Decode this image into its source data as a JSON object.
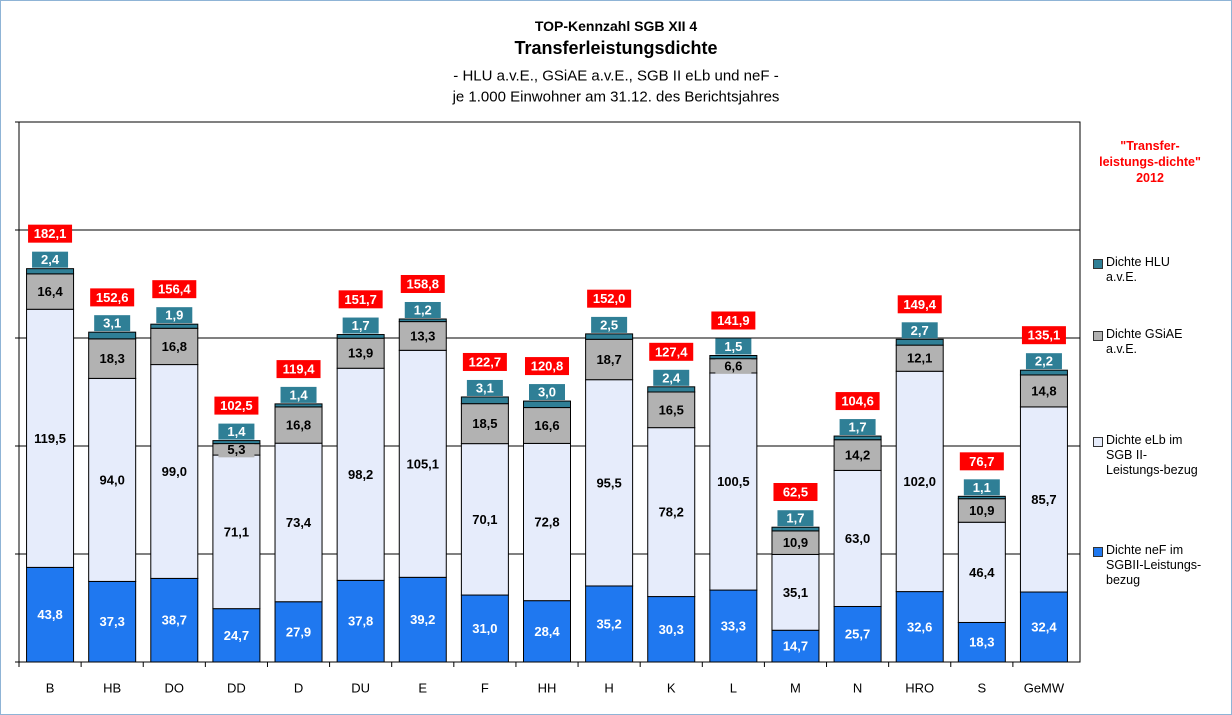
{
  "chart_data": {
    "type": "stacked_bar",
    "title": "TOP-Kennzahl SGB XII 4",
    "subtitle": "Transferleistungsdichte",
    "subtitle_lines": [
      "- HLU a.v.E., GSiAE a.v.E., SGB II eLb und neF -",
      "je 1.000 Einwohner am 31.12. des Berichtsjahres"
    ],
    "annotation": "\"Transfer-leistungs-dichte\" 2012",
    "categories": [
      "B",
      "HB",
      "DO",
      "DD",
      "D",
      "DU",
      "E",
      "F",
      "HH",
      "H",
      "K",
      "L",
      "M",
      "N",
      "HRO",
      "S",
      "GeMW"
    ],
    "ylim": [
      0,
      250
    ],
    "yticks": [
      0,
      50,
      100,
      150,
      200,
      250
    ],
    "grid": true,
    "tick_labels": false,
    "legend": "right",
    "series": [
      {
        "name": "Dichte neF im SGBII-Leistungs-bezug",
        "color": "#1f78f0",
        "label_color": "#ffffff",
        "values": [
          43.8,
          37.3,
          38.7,
          24.7,
          27.9,
          37.8,
          39.2,
          31.0,
          28.4,
          35.2,
          30.3,
          33.3,
          14.7,
          25.7,
          32.6,
          18.3,
          32.4
        ],
        "value_labels": [
          "43,8",
          "37,3",
          "38,7",
          "24,7",
          "27,9",
          "37,8",
          "39,2",
          "31,0",
          "28,4",
          "35,2",
          "30,3",
          "33,3",
          "14,7",
          "25,7",
          "32,6",
          "18,3",
          "32,4"
        ]
      },
      {
        "name": "Dichte eLb im SGB II-Leistungs-bezug",
        "color": "#e6ecfb",
        "label_color": "#000000",
        "values": [
          119.5,
          94.0,
          99.0,
          71.1,
          73.4,
          98.2,
          105.1,
          70.1,
          72.8,
          95.5,
          78.2,
          100.5,
          35.1,
          63.0,
          102.0,
          46.4,
          85.7
        ],
        "value_labels": [
          "119,5",
          "94,0",
          "99,0",
          "71,1",
          "73,4",
          "98,2",
          "105,1",
          "70,1",
          "72,8",
          "95,5",
          "78,2",
          "100,5",
          "35,1",
          "63,0",
          "102,0",
          "46,4",
          "85,7"
        ]
      },
      {
        "name": "Dichte GSiAE a.v.E.",
        "color": "#b2b2b2",
        "label_color": "#000000",
        "values": [
          16.4,
          18.3,
          16.8,
          5.3,
          16.8,
          13.9,
          13.3,
          18.5,
          16.6,
          18.7,
          16.5,
          6.6,
          10.9,
          14.2,
          12.1,
          10.9,
          14.8
        ],
        "value_labels": [
          "16,4",
          "18,3",
          "16,8",
          "5,3",
          "16,8",
          "13,9",
          "13,3",
          "18,5",
          "16,6",
          "18,7",
          "16,5",
          "6,6",
          "10,9",
          "14,2",
          "12,1",
          "10,9",
          "14,8"
        ]
      },
      {
        "name": "Dichte HLU a.v.E.",
        "color": "#2f7f96",
        "label_color": "#ffffff",
        "values": [
          2.4,
          3.1,
          1.9,
          1.4,
          1.4,
          1.7,
          1.2,
          3.1,
          3.0,
          2.5,
          2.4,
          1.5,
          1.7,
          1.7,
          2.7,
          1.1,
          2.2
        ],
        "value_labels": [
          "2,4",
          "3,1",
          "1,9",
          "1,4",
          "1,4",
          "1,7",
          "1,2",
          "3,1",
          "3,0",
          "2,5",
          "2,4",
          "1,5",
          "1,7",
          "1,7",
          "2,7",
          "1,1",
          "2,2"
        ]
      }
    ],
    "totals": {
      "color": "#ff0000",
      "values": [
        182.1,
        152.6,
        156.4,
        102.5,
        119.4,
        151.7,
        158.8,
        122.7,
        120.8,
        152.0,
        127.4,
        141.9,
        62.5,
        104.6,
        149.4,
        76.7,
        135.1
      ],
      "value_labels": [
        "182,1",
        "152,6",
        "156,4",
        "102,5",
        "119,4",
        "151,7",
        "158,8",
        "122,7",
        "120,8",
        "152,0",
        "127,4",
        "141,9",
        "62,5",
        "104,6",
        "149,4",
        "76,7",
        "135,1"
      ]
    }
  }
}
